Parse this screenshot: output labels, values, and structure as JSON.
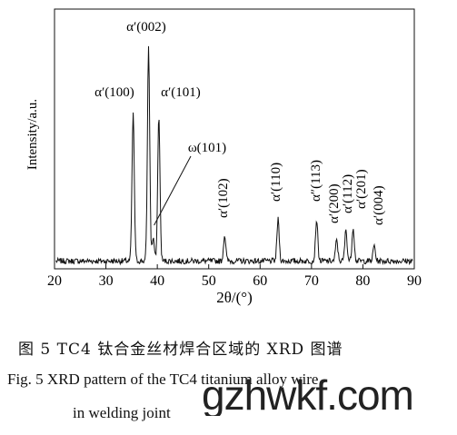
{
  "chart_data": {
    "type": "line",
    "xlabel": "2θ/(°)",
    "ylabel": "Intensity/a.u.",
    "xlim": [
      20,
      90
    ],
    "xticks": [
      20,
      30,
      40,
      50,
      60,
      70,
      80,
      90
    ],
    "ylim": [
      0,
      100
    ],
    "grid": false,
    "baseline": 3,
    "peaks": [
      {
        "x": 35.3,
        "y": 57,
        "label": "α′(100)"
      },
      {
        "x": 38.3,
        "y": 82,
        "label": "α′(002)"
      },
      {
        "x": 39.2,
        "y": 9,
        "label": "ω(101)"
      },
      {
        "x": 40.3,
        "y": 56,
        "label": "α′(101)"
      },
      {
        "x": 53.1,
        "y": 10,
        "label": "α′(102)"
      },
      {
        "x": 63.5,
        "y": 16,
        "label": "α′(110)"
      },
      {
        "x": 71.0,
        "y": 16,
        "label": "α″(113)"
      },
      {
        "x": 74.9,
        "y": 8,
        "label": "α′(200)"
      },
      {
        "x": 76.7,
        "y": 12,
        "label": "α′(112)"
      },
      {
        "x": 78.1,
        "y": 13,
        "label": "α′(201)"
      },
      {
        "x": 82.2,
        "y": 6,
        "label": "α′(004)"
      }
    ]
  },
  "caption": {
    "cn": "图 5   TC4 钛合金丝材焊合区域的 XRD 图谱",
    "en_line1": "Fig. 5   XRD pattern of the TC4 titanium alloy wire",
    "en_line2": "in welding joint"
  },
  "watermark": "gzhwkf.com"
}
